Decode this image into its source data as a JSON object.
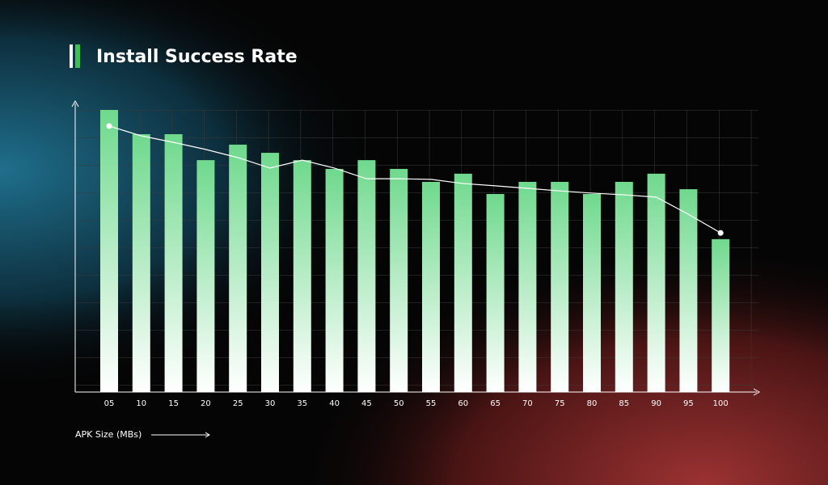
{
  "chart_data": {
    "type": "bar",
    "title": "Install Success Rate",
    "x_label": "APK Size (MBs)",
    "categories": [
      "05",
      "10",
      "15",
      "20",
      "25",
      "30",
      "35",
      "40",
      "45",
      "50",
      "55",
      "60",
      "65",
      "70",
      "75",
      "80",
      "85",
      "90",
      "95",
      "100"
    ],
    "series": [
      {
        "type": "bar",
        "color": "#6fd98d",
        "values": [
          100,
          91.4,
          91.4,
          82.2,
          87.7,
          84.8,
          82.2,
          79.1,
          82.2,
          79.1,
          74.5,
          77.4,
          70.2,
          74.5,
          74.5,
          70.2,
          74.5,
          77.4,
          71.9,
          54.2
        ]
      },
      {
        "type": "line",
        "color": "#ffffff",
        "values": [
          94.3,
          90.8,
          88.5,
          86,
          83.1,
          79.4,
          82.2,
          79.4,
          75.6,
          75.6,
          75.4,
          73.9,
          73.1,
          72.2,
          71.3,
          70.5,
          69.9,
          69.1,
          63,
          56.4
        ]
      }
    ],
    "ylim": [
      0,
      100
    ]
  }
}
